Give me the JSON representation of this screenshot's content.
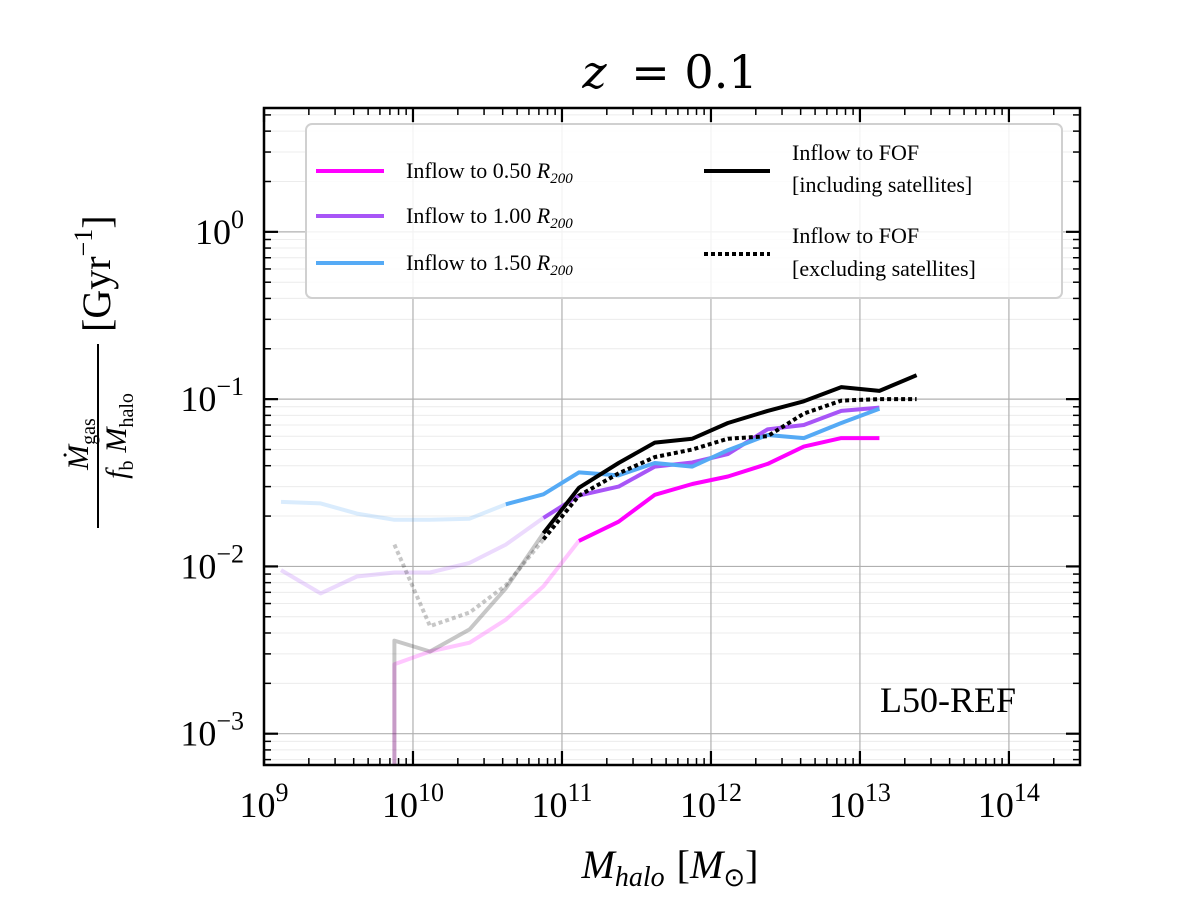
{
  "chart_data": {
    "type": "line",
    "title": "z = 0.1",
    "title_var": "z",
    "title_val": "= 0.1",
    "xlabel": "M_halo [M_sun]",
    "ylabel": "Mdot_gas / (f_b M_halo) [Gyr^-1]",
    "xscale": "log",
    "yscale": "log",
    "xlim": [
      1000000000.0,
      300000000000000.0
    ],
    "ylim": [
      0.00065,
      5.5
    ],
    "x_ticks": [
      {
        "value": 1000000000.0,
        "base": "10",
        "exp": "9"
      },
      {
        "value": 10000000000.0,
        "base": "10",
        "exp": "10"
      },
      {
        "value": 100000000000.0,
        "base": "10",
        "exp": "11"
      },
      {
        "value": 1000000000000.0,
        "base": "10",
        "exp": "12"
      },
      {
        "value": 10000000000000.0,
        "base": "10",
        "exp": "13"
      },
      {
        "value": 100000000000000.0,
        "base": "10",
        "exp": "14"
      }
    ],
    "y_ticks": [
      {
        "value": 0.001,
        "base": "10",
        "exp": "−3"
      },
      {
        "value": 0.01,
        "base": "10",
        "exp": "−2"
      },
      {
        "value": 0.1,
        "base": "10",
        "exp": "−1"
      },
      {
        "value": 1,
        "base": "10",
        "exp": "0"
      }
    ],
    "annotation": "L50-REF",
    "legend_position": "top-center",
    "series": [
      {
        "name": "Inflow to 0.50 R200",
        "label_text": "Inflow to 0.50 ",
        "color": "#ff00ff",
        "dash": "solid",
        "faint": {
          "x": [
            7500000000.0,
            7500000000.0,
            13000000000.0,
            24000000000.0,
            42000000000.0,
            75000000000.0,
            130000000000.0
          ],
          "y": [
            0.0005,
            0.0026,
            0.0031,
            0.0035,
            0.0048,
            0.0076,
            0.0142
          ]
        },
        "solid": {
          "x": [
            130000000000.0,
            240000000000.0,
            420000000000.0,
            750000000000.0,
            1300000000000.0,
            2400000000000.0,
            4200000000000.0,
            7500000000000.0,
            13500000000000.0
          ],
          "y": [
            0.0142,
            0.0185,
            0.0268,
            0.0311,
            0.0345,
            0.041,
            0.052,
            0.0585,
            0.0585
          ]
        }
      },
      {
        "name": "Inflow to 1.00 R200",
        "label_text": "Inflow to 1.00 ",
        "color": "#a855f7",
        "dash": "solid",
        "faint": {
          "x": [
            1300000000.0,
            2400000000.0,
            4200000000.0,
            7500000000.0,
            13000000000.0,
            24000000000.0,
            42000000000.0,
            75000000000.0
          ],
          "y": [
            0.0095,
            0.0069,
            0.0087,
            0.0092,
            0.0092,
            0.0105,
            0.0135,
            0.0195
          ]
        },
        "solid": {
          "x": [
            75000000000.0,
            130000000000.0,
            240000000000.0,
            420000000000.0,
            750000000000.0,
            1300000000000.0,
            2400000000000.0,
            4200000000000.0,
            7500000000000.0,
            13500000000000.0
          ],
          "y": [
            0.0195,
            0.0265,
            0.03,
            0.0395,
            0.0418,
            0.047,
            0.066,
            0.07,
            0.085,
            0.089
          ]
        }
      },
      {
        "name": "Inflow to 1.50 R200",
        "label_text": "Inflow to 1.50 ",
        "color": "#55aaf5",
        "dash": "solid",
        "faint": {
          "x": [
            1300000000.0,
            2400000000.0,
            4200000000.0,
            7500000000.0,
            13000000000.0,
            24000000000.0,
            42000000000.0
          ],
          "y": [
            0.0243,
            0.0238,
            0.0207,
            0.019,
            0.019,
            0.0193,
            0.0235
          ]
        },
        "solid": {
          "x": [
            42000000000.0,
            75000000000.0,
            130000000000.0,
            240000000000.0,
            420000000000.0,
            750000000000.0,
            1300000000000.0,
            2400000000000.0,
            4200000000000.0,
            7500000000000.0,
            13500000000000.0
          ],
          "y": [
            0.0235,
            0.027,
            0.0365,
            0.035,
            0.0415,
            0.0395,
            0.0495,
            0.061,
            0.0585,
            0.072,
            0.0875
          ]
        }
      },
      {
        "name": "Inflow to FOF [including satellites]",
        "label_line1": "Inflow to FOF",
        "label_line2": "[including satellites]",
        "color": "#000000",
        "dash": "solid",
        "faint": {
          "x": [
            7500000000.0,
            7500000000.0,
            13000000000.0,
            24000000000.0,
            42000000000.0,
            75000000000.0
          ],
          "y": [
            0.0005,
            0.0036,
            0.0031,
            0.0042,
            0.0074,
            0.0158
          ]
        },
        "solid": {
          "x": [
            75000000000.0,
            130000000000.0,
            240000000000.0,
            420000000000.0,
            750000000000.0,
            1300000000000.0,
            2400000000000.0,
            4200000000000.0,
            7500000000000.0,
            13500000000000.0,
            24000000000000.0
          ],
          "y": [
            0.0158,
            0.0295,
            0.0415,
            0.055,
            0.058,
            0.072,
            0.085,
            0.097,
            0.118,
            0.112,
            0.139
          ]
        }
      },
      {
        "name": "Inflow to FOF [excluding satellites]",
        "label_line1": "Inflow to FOF",
        "label_line2": "[excluding satellites]",
        "color": "#000000",
        "dash": "dotted",
        "faint": {
          "x": [
            7500000000.0,
            13000000000.0,
            24000000000.0,
            42000000000.0,
            75000000000.0
          ],
          "y": [
            0.0135,
            0.0044,
            0.0053,
            0.0077,
            0.0145
          ]
        },
        "solid": {
          "x": [
            75000000000.0,
            130000000000.0,
            240000000000.0,
            420000000000.0,
            750000000000.0,
            1300000000000.0,
            2400000000000.0,
            4200000000000.0,
            7500000000000.0,
            13500000000000.0,
            24000000000000.0
          ],
          "y": [
            0.0145,
            0.0265,
            0.036,
            0.045,
            0.05,
            0.058,
            0.06,
            0.082,
            0.098,
            0.1,
            0.1
          ]
        }
      }
    ],
    "subscript_r": "R",
    "subscript_200": "200"
  },
  "axis_text": {
    "x_main": "M",
    "x_sub": "halo",
    "x_unit_open": "[",
    "x_unit_var": "M",
    "x_unit_sub": "⊙",
    "x_unit_close": "]",
    "y_num_main": "Ṁ",
    "y_num_sub": "gas",
    "y_den_f": "f",
    "y_den_fsub": "b",
    "y_den_m": "M",
    "y_den_msub": "halo",
    "y_unit": "[Gyr",
    "y_unit_exp": "−1",
    "y_unit_close": "]"
  }
}
